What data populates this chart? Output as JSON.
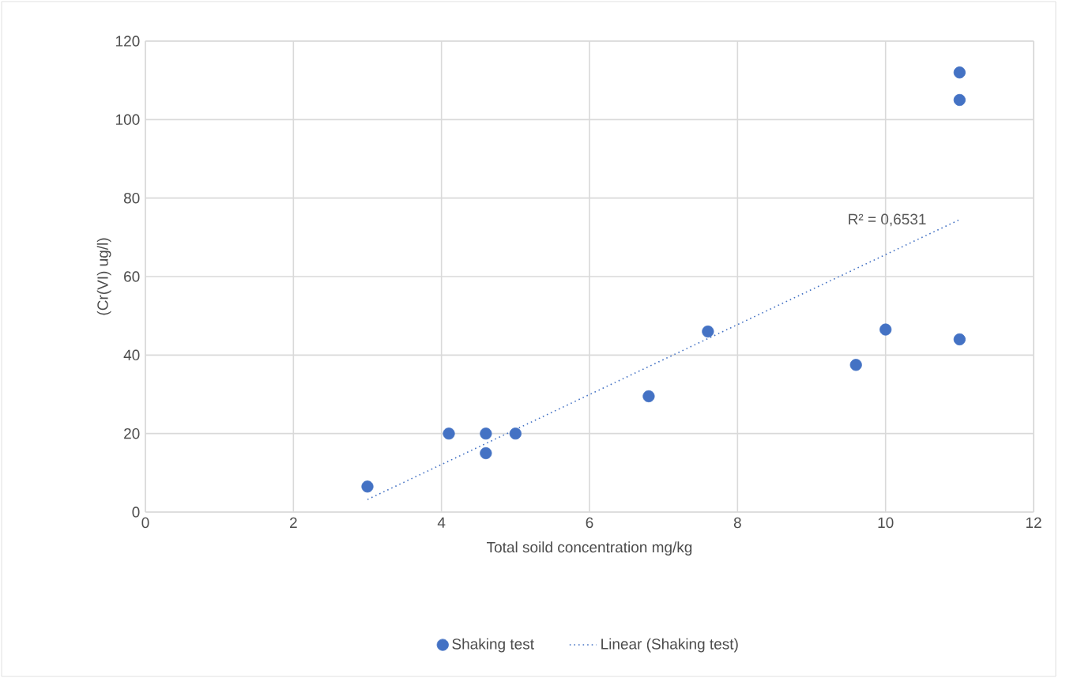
{
  "chart_data": {
    "type": "scatter",
    "xlabel": "Total soild concentration mg/kg",
    "ylabel": "(Cr(VI) ug/l)",
    "xlim": [
      0,
      12
    ],
    "xticks": [
      0,
      2,
      4,
      6,
      8,
      10,
      12
    ],
    "ylim": [
      0,
      120
    ],
    "yticks": [
      0,
      20,
      40,
      60,
      80,
      100,
      120
    ],
    "grid": true,
    "legend": "bottom",
    "annotations": [
      "R² = 0,6531"
    ],
    "series": [
      {
        "name": "Shaking test",
        "marker": "circle",
        "color": "#4472c4",
        "x": [
          3.0,
          4.1,
          4.6,
          4.6,
          5.0,
          6.8,
          7.6,
          9.6,
          10.0,
          11.0,
          11.0,
          11.0
        ],
        "values": [
          6.5,
          20,
          20,
          15,
          20,
          29.5,
          46,
          37.5,
          46.5,
          44,
          105,
          112
        ]
      },
      {
        "name": "Linear (Shaking test)",
        "type": "line",
        "marker": "none",
        "line_style": "dotted",
        "color": "#4472c4",
        "x": [
          3,
          11
        ],
        "values": [
          3.2,
          74.5
        ]
      }
    ]
  }
}
